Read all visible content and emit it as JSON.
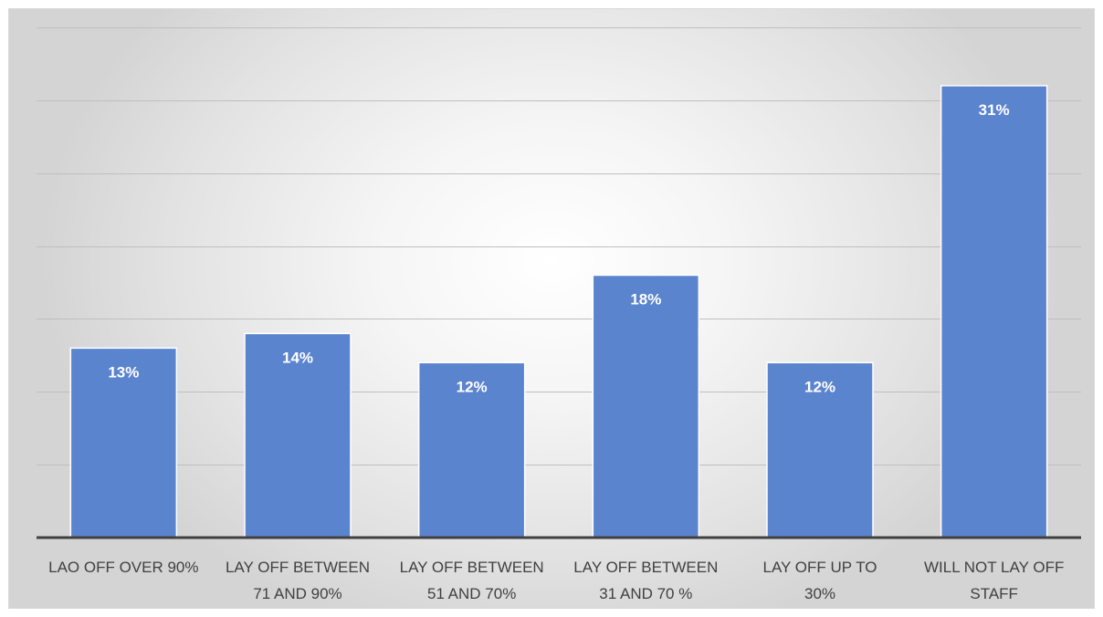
{
  "chart_data": {
    "type": "bar",
    "categories": [
      [
        "LAO OFF OVER 90%"
      ],
      [
        "LAY OFF BETWEEN",
        "71 AND 90%"
      ],
      [
        "LAY OFF BETWEEN",
        "51 AND 70%"
      ],
      [
        "LAY OFF BETWEEN",
        "31 AND 70 %"
      ],
      [
        "LAY OFF UP TO",
        "30%"
      ],
      [
        "WILL NOT LAY OFF",
        "STAFF"
      ]
    ],
    "values": [
      13,
      14,
      12,
      18,
      12,
      31
    ],
    "data_labels": [
      "13%",
      "14%",
      "12%",
      "18%",
      "12%",
      "31%"
    ],
    "title": "",
    "xlabel": "",
    "ylabel": "",
    "ylim": [
      0,
      35
    ],
    "grid_step": 5,
    "grid": true,
    "legend": "none",
    "colors": {
      "bar": "#5b84cf",
      "gridline": "#bfbfbf",
      "axis": "#404040",
      "label": "#404040",
      "data_label": "#ffffff"
    }
  }
}
